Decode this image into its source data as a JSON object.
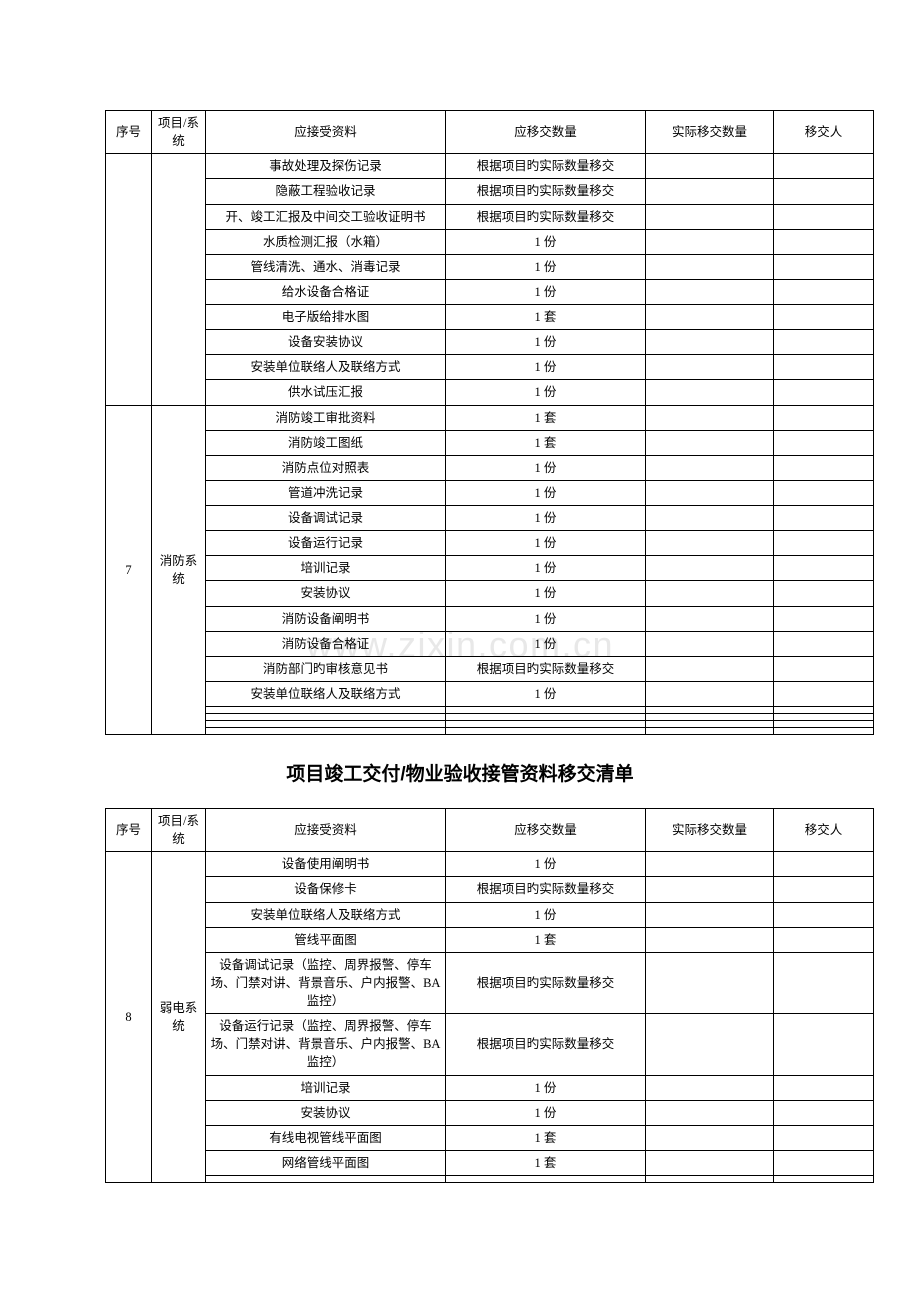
{
  "colors": {
    "border": "#000000",
    "text": "#000000",
    "background": "#ffffff",
    "watermark": "#e8e8e8"
  },
  "typography": {
    "body_font": "SimSun",
    "title_font": "SimHei",
    "cell_fontsize": 12.5,
    "title_fontsize": 19
  },
  "watermark": "www.zixin.com.cn",
  "section_title": "项目竣工交付/物业验收接管资料移交清单",
  "headers": {
    "seq": "序号",
    "system": "项目/系统",
    "docs": "应接受资料",
    "qty": "应移交数量",
    "actual": "实际移交数量",
    "person": "移交人"
  },
  "column_widths": {
    "seq": 46,
    "system": 54,
    "docs": 240,
    "qty": 200,
    "actual": 128,
    "person": 100
  },
  "table1": {
    "groups": [
      {
        "seq": "",
        "system": "",
        "rows": [
          {
            "docs": "事故处理及探伤记录",
            "qty": "根据项目旳实际数量移交"
          },
          {
            "docs": "隐蔽工程验收记录",
            "qty": "根据项目旳实际数量移交"
          },
          {
            "docs": "开、竣工汇报及中间交工验收证明书",
            "qty": "根据项目旳实际数量移交"
          },
          {
            "docs": "水质检测汇报（水箱）",
            "qty": "1 份"
          },
          {
            "docs": "管线清洗、通水、消毒记录",
            "qty": "1 份"
          },
          {
            "docs": "给水设备合格证",
            "qty": "1 份"
          },
          {
            "docs": "电子版给排水图",
            "qty": "1 套"
          },
          {
            "docs": "设备安装协议",
            "qty": "1 份"
          },
          {
            "docs": "安装单位联络人及联络方式",
            "qty": "1 份"
          },
          {
            "docs": "供水试压汇报",
            "qty": "1 份"
          }
        ]
      },
      {
        "seq": "7",
        "system": "消防系统",
        "rows": [
          {
            "docs": "消防竣工审批资料",
            "qty": "1 套"
          },
          {
            "docs": "消防竣工图纸",
            "qty": "1 套"
          },
          {
            "docs": "消防点位对照表",
            "qty": "1 份"
          },
          {
            "docs": "管道冲洗记录",
            "qty": "1 份"
          },
          {
            "docs": "设备调试记录",
            "qty": "1 份"
          },
          {
            "docs": "设备运行记录",
            "qty": "1 份"
          },
          {
            "docs": "培训记录",
            "qty": "1 份"
          },
          {
            "docs": "安装协议",
            "qty": "1 份"
          },
          {
            "docs": "消防设备阐明书",
            "qty": "1 份"
          },
          {
            "docs": "消防设备合格证",
            "qty": "1 份"
          },
          {
            "docs": "消防部门旳审核意见书",
            "qty": "根据项目旳实际数量移交"
          },
          {
            "docs": "安装单位联络人及联络方式",
            "qty": "1 份"
          },
          {
            "docs": "",
            "qty": ""
          },
          {
            "docs": "",
            "qty": ""
          },
          {
            "docs": "",
            "qty": ""
          },
          {
            "docs": "",
            "qty": ""
          }
        ]
      }
    ]
  },
  "table2": {
    "groups": [
      {
        "seq": "8",
        "system": "弱电系统",
        "rows": [
          {
            "docs": "设备使用阐明书",
            "qty": "1 份"
          },
          {
            "docs": "设备保修卡",
            "qty": "根据项目旳实际数量移交"
          },
          {
            "docs": "安装单位联络人及联络方式",
            "qty": "1 份"
          },
          {
            "docs": "管线平面图",
            "qty": "1 套"
          },
          {
            "docs": "设备调试记录（监控、周界报警、停车场、门禁对讲、背景音乐、户内报警、BA 监控）",
            "qty": "根据项目旳实际数量移交"
          },
          {
            "docs": "设备运行记录（监控、周界报警、停车场、门禁对讲、背景音乐、户内报警、BA 监控）",
            "qty": "根据项目旳实际数量移交"
          },
          {
            "docs": "培训记录",
            "qty": "1 份"
          },
          {
            "docs": "安装协议",
            "qty": "1 份"
          },
          {
            "docs": "有线电视管线平面图",
            "qty": "1 套"
          },
          {
            "docs": "网络管线平面图",
            "qty": "1 套"
          },
          {
            "docs": "",
            "qty": ""
          }
        ]
      }
    ]
  }
}
